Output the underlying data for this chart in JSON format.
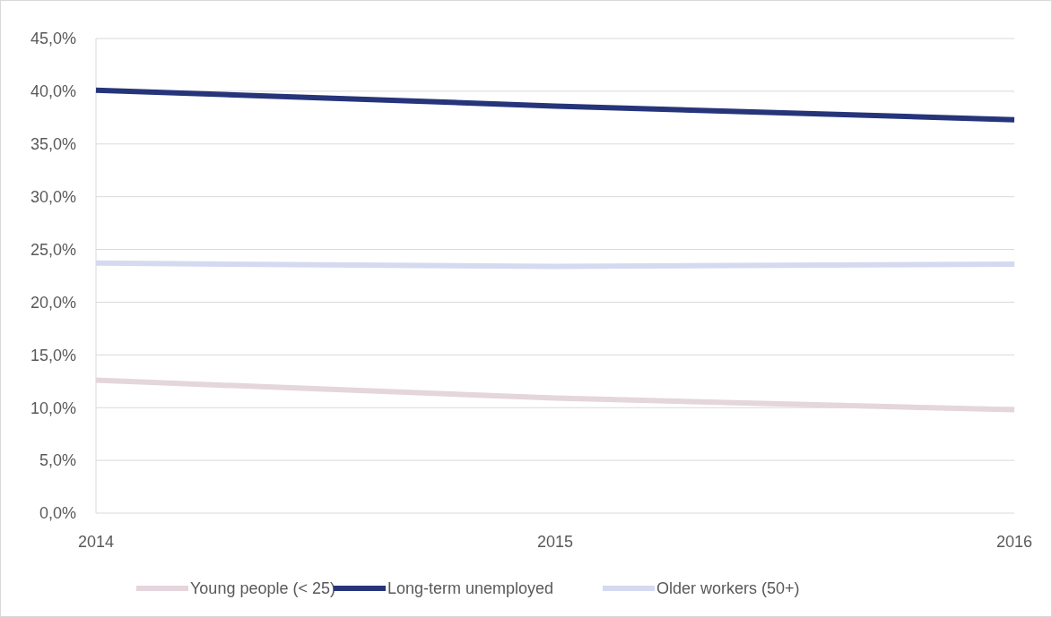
{
  "chart_data": {
    "type": "line",
    "x": [
      2014,
      2015,
      2016
    ],
    "xlim": [
      2014,
      2016
    ],
    "xticks": [
      2014,
      2015,
      2016
    ],
    "ylim": [
      0,
      45
    ],
    "yticks": [
      {
        "value": 0,
        "label": "0,0%"
      },
      {
        "value": 5,
        "label": "5,0%"
      },
      {
        "value": 10,
        "label": "10,0%"
      },
      {
        "value": 15,
        "label": "15,0%"
      },
      {
        "value": 20,
        "label": "20,0%"
      },
      {
        "value": 25,
        "label": "25,0%"
      },
      {
        "value": 30,
        "label": "30,0%"
      },
      {
        "value": 35,
        "label": "35,0%"
      },
      {
        "value": 40,
        "label": "40,0%"
      },
      {
        "value": 45,
        "label": "45,0%"
      }
    ],
    "grid": "y",
    "legend": "bottom",
    "marker": "none",
    "line_style": "solid",
    "series": [
      {
        "name": "Young people  (< 25)",
        "color": "#e4d6dc",
        "values": [
          12.6,
          10.9,
          9.8
        ]
      },
      {
        "name": "Long-term unemployed",
        "color": "#26357a",
        "values": [
          40.1,
          38.6,
          37.3
        ]
      },
      {
        "name": "Older workers (50+)",
        "color": "#d5daf0",
        "values": [
          23.7,
          23.4,
          23.6
        ]
      }
    ]
  }
}
